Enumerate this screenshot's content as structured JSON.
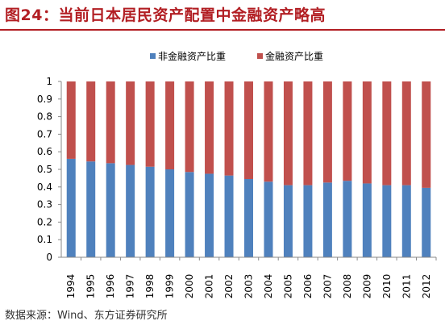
{
  "header": {
    "title": "图24：当前日本居民资产配置中金融资产略高"
  },
  "footer": {
    "source": "数据来源：Wind、东方证券研究所"
  },
  "chart_data": {
    "type": "bar",
    "stacked": true,
    "title": "",
    "xlabel": "",
    "ylabel": "",
    "ylim": [
      0,
      1
    ],
    "yticks": [
      "0",
      "0.1",
      "0.2",
      "0.3",
      "0.4",
      "0.5",
      "0.6",
      "0.7",
      "0.8",
      "0.9",
      "1"
    ],
    "grid": false,
    "legend_position": "top",
    "categories": [
      "1994",
      "1995",
      "1996",
      "1997",
      "1998",
      "1999",
      "2000",
      "2001",
      "2002",
      "2003",
      "2004",
      "2005",
      "2006",
      "2007",
      "2008",
      "2009",
      "2010",
      "2011",
      "2012"
    ],
    "series": [
      {
        "name": "非金融资产比重",
        "color": "#4f81bd",
        "values": [
          0.56,
          0.545,
          0.535,
          0.525,
          0.515,
          0.5,
          0.485,
          0.475,
          0.465,
          0.445,
          0.43,
          0.41,
          0.41,
          0.425,
          0.435,
          0.42,
          0.41,
          0.41,
          0.395
        ]
      },
      {
        "name": "金融资产比重",
        "color": "#c0504d",
        "values": [
          0.44,
          0.455,
          0.465,
          0.475,
          0.485,
          0.5,
          0.515,
          0.525,
          0.535,
          0.555,
          0.57,
          0.59,
          0.59,
          0.575,
          0.565,
          0.58,
          0.59,
          0.59,
          0.605
        ]
      }
    ]
  }
}
